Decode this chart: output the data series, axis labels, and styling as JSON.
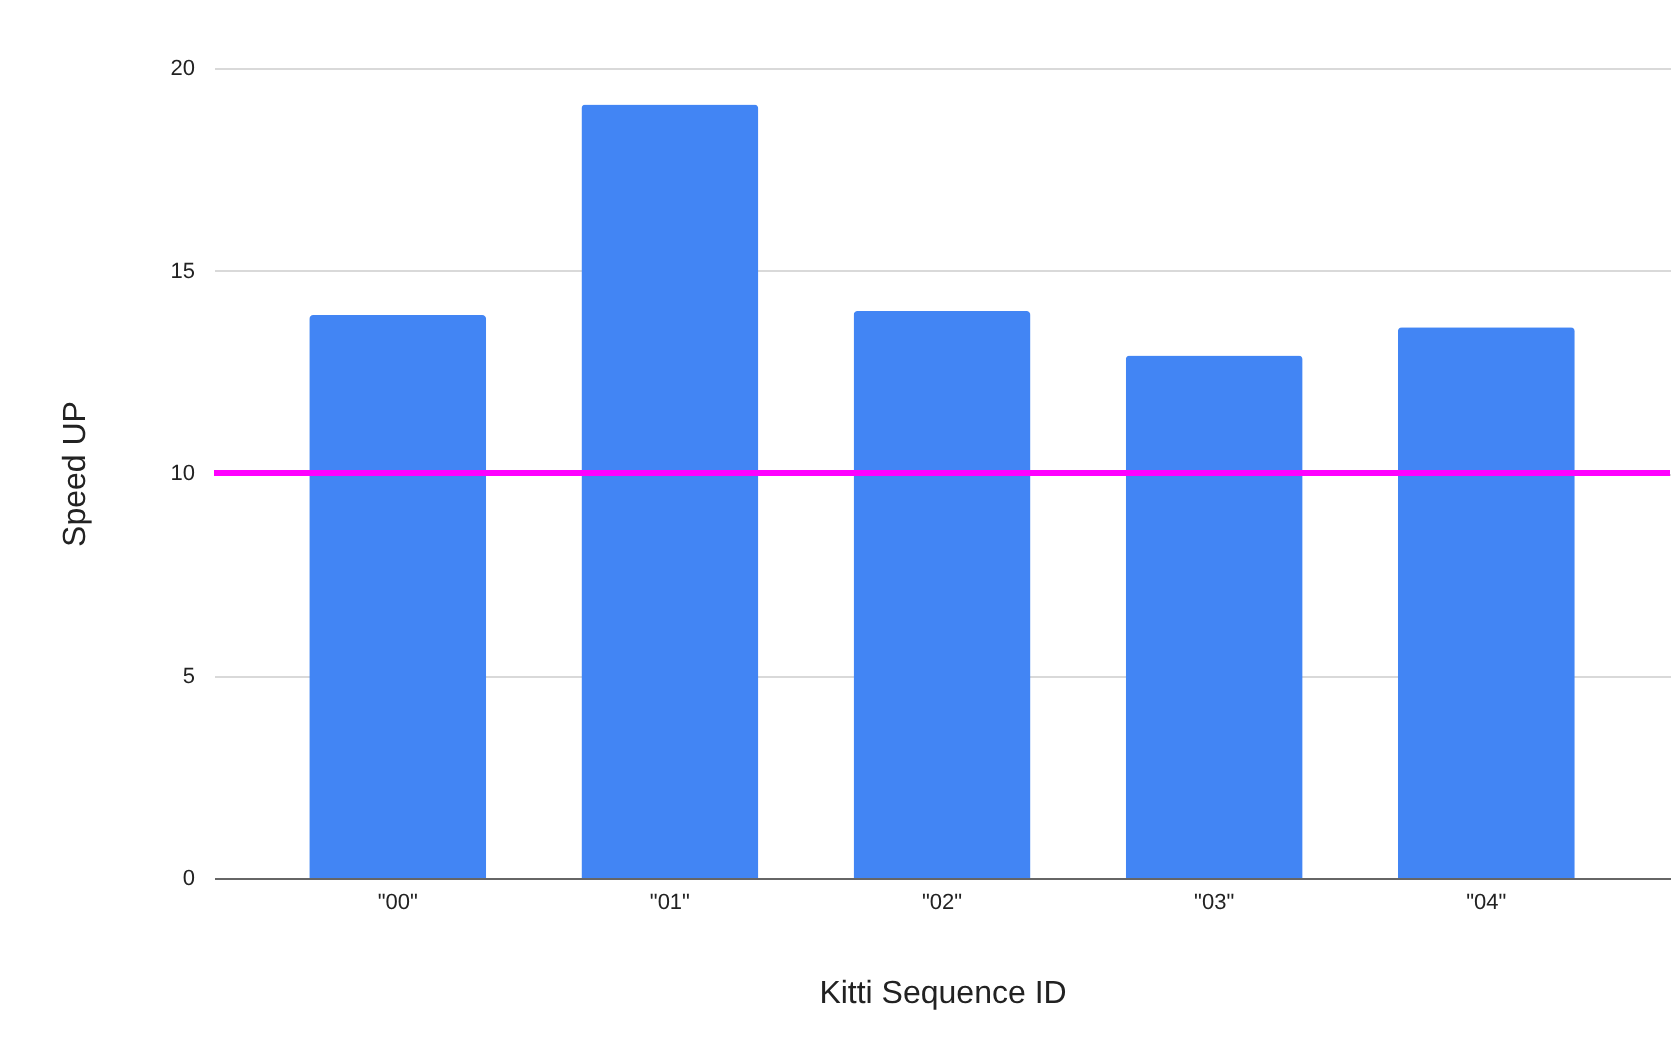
{
  "chart_data": {
    "type": "bar",
    "xlabel": "Kitti Sequence ID",
    "ylabel": "Speed UP",
    "categories": [
      "\"00\"",
      "\"01\"",
      "\"02\"",
      "\"03\"",
      "\"04\""
    ],
    "values": [
      13.9,
      19.1,
      14.0,
      12.9,
      13.6
    ],
    "color": "#4285f4",
    "ylim": [
      0,
      20
    ],
    "yticks": [
      0,
      5,
      10,
      15,
      20
    ],
    "grid": "y",
    "ref_lines": [
      {
        "axis": "y",
        "value": 10,
        "color": "#ff00ff"
      }
    ]
  }
}
